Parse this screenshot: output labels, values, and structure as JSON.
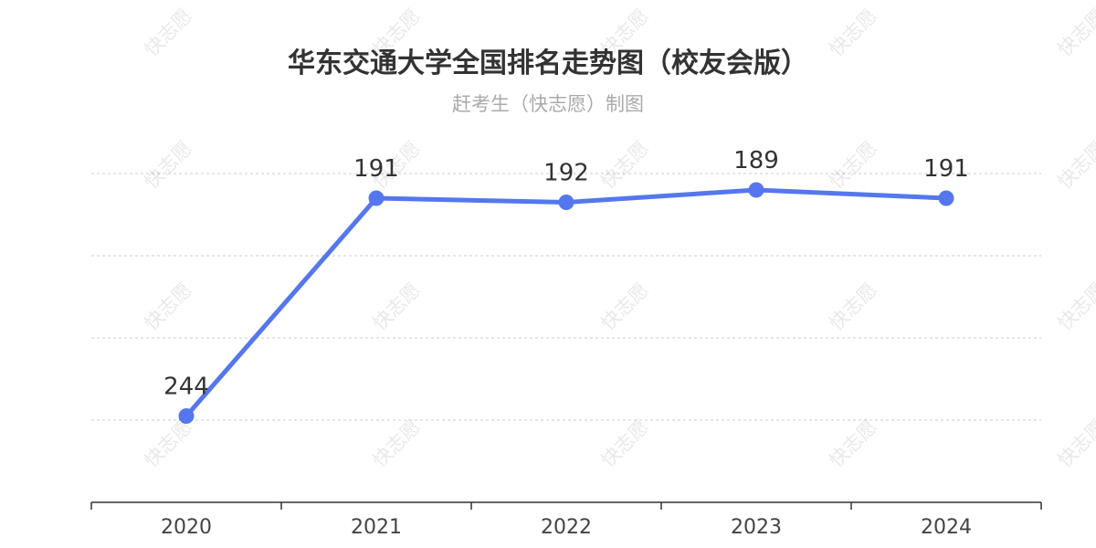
{
  "chart_data": {
    "type": "line",
    "title": "华东交通大学全国排名走势图（校友会版）",
    "subtitle": "赶考生（快志愿）制图",
    "categories": [
      "2020",
      "2021",
      "2022",
      "2023",
      "2024"
    ],
    "series": [
      {
        "values": [
          244,
          191,
          192,
          189,
          191
        ]
      }
    ],
    "y_inverted": true,
    "ylim": [
      185,
      265
    ],
    "grid": true,
    "color": "#5577ee",
    "watermark": "快志愿"
  }
}
